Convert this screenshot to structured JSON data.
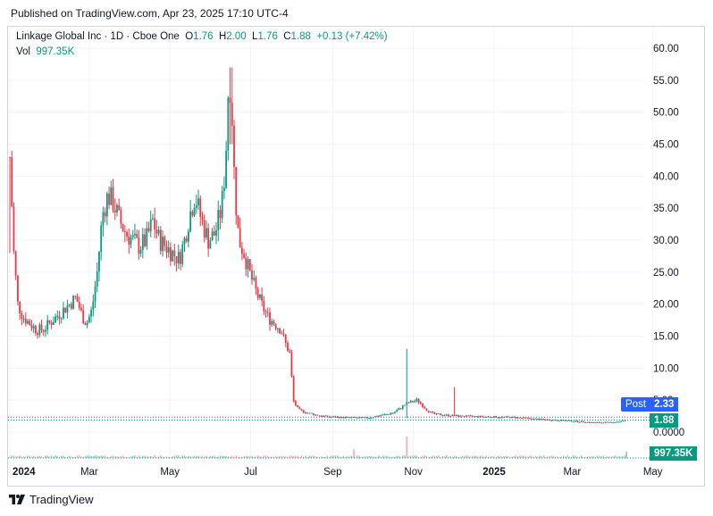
{
  "header": {
    "published": "Published on TradingView.com, Apr 23, 2025 17:10 UTC-4"
  },
  "legend": {
    "symbol": "Linkage Global Inc · 1D · Cboe One",
    "open_label": "O",
    "open": "1.76",
    "high_label": "H",
    "high": "2.00",
    "low_label": "L",
    "low": "1.76",
    "close_label": "C",
    "close": "1.88",
    "change": "+0.13 (+7.42%)",
    "vol_label": "Vol",
    "vol": "997.35K"
  },
  "badges": {
    "post_label": "Post",
    "post_value": "2.33",
    "close_value": "1.88",
    "vol_value": "997.35K"
  },
  "brand": "TradingView",
  "colors": {
    "up": "#089981",
    "down": "#f23645",
    "post": "#2962ff",
    "grid": "#f0f3fa",
    "axis_text": "#131722"
  },
  "chart_data": {
    "type": "candlestick",
    "title": "Linkage Global Inc · 1D · Cboe One",
    "ylim": [
      -1.5,
      61
    ],
    "y_ticks": [
      "60.00",
      "55.00",
      "50.00",
      "45.00",
      "40.00",
      "35.00",
      "30.00",
      "25.00",
      "20.00",
      "15.00",
      "10.00",
      "5.00",
      "0.0000"
    ],
    "y_tick_values": [
      60,
      55,
      50,
      45,
      40,
      35,
      30,
      25,
      20,
      15,
      10,
      5,
      0
    ],
    "x_labels": [
      {
        "label": "2024",
        "day": 0,
        "bold": true
      },
      {
        "label": "Mar",
        "day": 60
      },
      {
        "label": "May",
        "day": 121
      },
      {
        "label": "Jul",
        "day": 182
      },
      {
        "label": "Sep",
        "day": 244
      },
      {
        "label": "Nov",
        "day": 305
      },
      {
        "label": "2025",
        "day": 366,
        "bold": true
      },
      {
        "label": "Mar",
        "day": 425
      },
      {
        "label": "May",
        "day": 486
      }
    ],
    "price_path": [
      [
        0,
        43
      ],
      [
        3,
        28
      ],
      [
        6,
        20
      ],
      [
        10,
        18
      ],
      [
        15,
        17
      ],
      [
        20,
        16
      ],
      [
        25,
        16
      ],
      [
        30,
        17
      ],
      [
        35,
        18
      ],
      [
        40,
        19
      ],
      [
        45,
        20
      ],
      [
        50,
        21
      ],
      [
        55,
        18
      ],
      [
        58,
        17
      ],
      [
        62,
        19
      ],
      [
        66,
        25
      ],
      [
        70,
        34
      ],
      [
        74,
        37
      ],
      [
        78,
        36
      ],
      [
        83,
        33
      ],
      [
        88,
        31
      ],
      [
        93,
        30
      ],
      [
        98,
        29
      ],
      [
        103,
        30
      ],
      [
        108,
        33
      ],
      [
        113,
        30
      ],
      [
        118,
        29
      ],
      [
        123,
        28
      ],
      [
        128,
        27
      ],
      [
        132,
        30
      ],
      [
        136,
        34
      ],
      [
        140,
        37
      ],
      [
        145,
        33
      ],
      [
        150,
        30
      ],
      [
        155,
        31
      ],
      [
        160,
        35
      ],
      [
        163,
        42
      ],
      [
        165,
        53
      ],
      [
        167,
        55
      ],
      [
        170,
        38
      ],
      [
        173,
        30
      ],
      [
        177,
        28
      ],
      [
        181,
        25
      ],
      [
        186,
        22
      ],
      [
        190,
        20
      ],
      [
        195,
        18
      ],
      [
        200,
        17
      ],
      [
        205,
        16
      ],
      [
        208,
        14
      ],
      [
        212,
        12
      ],
      [
        214,
        5
      ],
      [
        218,
        3.5
      ],
      [
        225,
        3
      ],
      [
        235,
        2.5
      ],
      [
        250,
        2.3
      ],
      [
        270,
        2.2
      ],
      [
        290,
        3
      ],
      [
        300,
        4.5
      ],
      [
        308,
        5
      ],
      [
        315,
        3.5
      ],
      [
        320,
        2.8
      ],
      [
        340,
        2.5
      ],
      [
        360,
        2.4
      ],
      [
        380,
        2.3
      ],
      [
        400,
        2
      ],
      [
        420,
        1.8
      ],
      [
        440,
        1.5
      ],
      [
        455,
        1.5
      ],
      [
        462,
        1.7
      ],
      [
        466,
        1.88
      ]
    ],
    "notable_wicks": [
      {
        "day": 0,
        "high": 43,
        "low": 28
      },
      {
        "day": 167,
        "high": 57,
        "low": 45
      },
      {
        "day": 300,
        "high": 13,
        "low": 2.2
      },
      {
        "day": 336,
        "high": 7,
        "low": 3
      }
    ],
    "volume_spikes": [
      {
        "day": 300,
        "rel": 1.0
      },
      {
        "day": 260,
        "rel": 0.4
      },
      {
        "day": 466,
        "rel": 0.3
      }
    ],
    "last_close": 1.88,
    "post_price": 2.33
  }
}
